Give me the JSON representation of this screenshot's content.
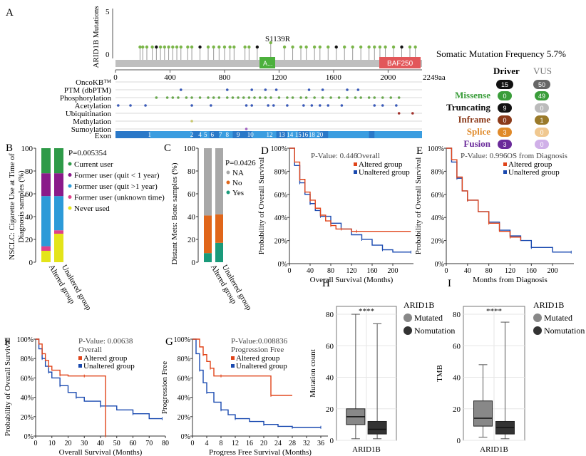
{
  "panelA": {
    "letter": "A",
    "yaxis_label": "ARID1B Mutations",
    "y_ticks": [
      "5",
      "0"
    ],
    "hotspot_label": "S1139R",
    "domain_small": "A...",
    "domain_large": "BAF250",
    "axis_ticks": [
      "0",
      "400",
      "800",
      "1200",
      "1600",
      "2000"
    ],
    "axis_end": "2249aa",
    "tracks": [
      "OncoKB™",
      "PTM (dbPTM)",
      "Phosphorylation",
      "Acetylation",
      "Ubiquitination",
      "Methylation",
      "Sumoylation",
      "Exon"
    ],
    "exon_labels": [
      "1",
      "2",
      "4",
      "5",
      "6",
      "7",
      "8",
      "9",
      "10",
      "12",
      "13",
      "14",
      "15",
      "16",
      "18",
      "20"
    ],
    "somatic_title": "Somatic Mutation Frequency 5.7%",
    "driver_header": "Driver",
    "vus_header": "VUS",
    "mutation_table": [
      {
        "label": "Missense",
        "color": "#3a9d3a",
        "driver": "0",
        "vus": "49",
        "driver_bg": "#3a9d3a",
        "vus_bg": "#3a9d3a"
      },
      {
        "label": "Truncating",
        "color": "#111111",
        "driver": "9",
        "vus": "0",
        "driver_bg": "#111111",
        "vus_bg": "#bbbbbb"
      },
      {
        "label": "Inframe",
        "color": "#8b3a1a",
        "driver": "0",
        "vus": "1",
        "driver_bg": "#8b3a1a",
        "vus_bg": "#9a7a2a"
      },
      {
        "label": "Splice",
        "color": "#e08a2a",
        "driver": "3",
        "vus": "0",
        "driver_bg": "#e08a2a",
        "vus_bg": "#f0c890"
      },
      {
        "label": "Fusion",
        "color": "#6a2a9a",
        "driver": "3",
        "vus": "0",
        "driver_bg": "#6a2a9a",
        "vus_bg": "#d0b0e8"
      }
    ],
    "totals": {
      "driver": "15",
      "vus": "50",
      "driver_bg": "#111111",
      "vus_bg": "#666666"
    }
  },
  "panelB": {
    "letter": "B",
    "ylabel_line1": "NSCLC: Cigarette Use at Time of",
    "ylabel_line2": "Diagnosis samples (%)",
    "pvalue": "P=0.005354",
    "y_ticks": [
      "100",
      "80",
      "60",
      "40",
      "20",
      "0"
    ],
    "categories": [
      "Altered group",
      "Unaltered group"
    ],
    "legend": [
      {
        "label": "Current user",
        "color": "#2e9a48"
      },
      {
        "label": "Former user (quit < 1 year)",
        "color": "#8a1a8a"
      },
      {
        "label": "Former user (quit >1 year)",
        "color": "#2c9ad8"
      },
      {
        "label": "Former user (unknown time)",
        "color": "#e0408a"
      },
      {
        "label": "Never used",
        "color": "#e4e41a"
      }
    ]
  },
  "panelC": {
    "letter": "C",
    "ylabel": "Distant Mets: Bone samples (%)",
    "pvalue": "P=0.0426",
    "y_ticks": [
      "100",
      "80",
      "60",
      "40",
      "20",
      "0"
    ],
    "categories": [
      "Altered group",
      "Unaltered group"
    ],
    "legend": [
      {
        "label": "NA",
        "color": "#a8a8a8"
      },
      {
        "label": "No",
        "color": "#e0661a"
      },
      {
        "label": "Yes",
        "color": "#1a9a7a"
      }
    ]
  },
  "panelD": {
    "letter": "D",
    "ylabel": "Probability of Overall Survival",
    "xlabel": "Overall Survival (Months)",
    "pvalue": "P-Value: 0.446",
    "subtitle": "Overall",
    "legend": [
      "Altered group",
      "Unaltered group"
    ],
    "y_ticks": [
      "100%",
      "80%",
      "60%",
      "40%",
      "20%",
      "0%"
    ],
    "x_ticks": [
      "0",
      "40",
      "80",
      "120",
      "160",
      "200"
    ]
  },
  "panelE": {
    "letter": "E",
    "ylabel": "Probability of Overall Survival",
    "xlabel": "Months from Diagnosis",
    "pvalue": "P-Value: 0.996",
    "subtitle": "OS from Diagnosis",
    "legend": [
      "Altered group",
      "Unaltered group"
    ],
    "y_ticks": [
      "100%",
      "80%",
      "60%",
      "40%",
      "20%",
      "0%"
    ],
    "x_ticks": [
      "0",
      "40",
      "80",
      "120",
      "160",
      "200"
    ]
  },
  "panelF": {
    "letter": "F",
    "ylabel": "Probability of Overall Survival",
    "xlabel": "Overall Survival (Months)",
    "pvalue": "P-Value: 0.00638",
    "subtitle": "Overall",
    "legend": [
      "Altered group",
      "Unaltered group"
    ],
    "y_ticks": [
      "100%",
      "80%",
      "60%",
      "40%",
      "20%",
      "0%"
    ],
    "x_ticks": [
      "0",
      "10",
      "20",
      "30",
      "40",
      "50",
      "60",
      "70",
      "80"
    ]
  },
  "panelG": {
    "letter": "G",
    "ylabel": "Progression Free",
    "xlabel": "Progress Free Survival (Months)",
    "pvalue": "P-Value:0.008836",
    "subtitle": "Progression Free",
    "legend": [
      "Altered group",
      "Unaltered group"
    ],
    "y_ticks": [
      "100%",
      "80%",
      "60%",
      "40%",
      "20%",
      "0%"
    ],
    "x_ticks": [
      "0",
      "4",
      "8",
      "12",
      "16",
      "20",
      "24",
      "28",
      "32",
      "36"
    ]
  },
  "panelH": {
    "letter": "H",
    "ylabel": "Mutation count",
    "xlabel": "ARID1B",
    "signif": "****",
    "legend_title": "ARID1B",
    "legend": [
      "Mutated",
      "Nomutation"
    ],
    "y_ticks": [
      "80",
      "60",
      "40",
      "20",
      "0"
    ]
  },
  "panelI": {
    "letter": "I",
    "ylabel": "TMB",
    "xlabel": "ARID1B",
    "signif": "****",
    "legend_title": "ARID1B",
    "legend": [
      "Mutated",
      "Nomutation"
    ],
    "y_ticks": [
      "80",
      "60",
      "40",
      "20",
      "0"
    ]
  },
  "colors": {
    "altered": "#e0441a",
    "unaltered": "#1a4ab0",
    "mutated": "#888888",
    "nomutation": "#333333"
  },
  "chart_data": [
    {
      "id": "B",
      "type": "bar",
      "title": "NSCLC: Cigarette Use at Time of Diagnosis",
      "categories": [
        "Altered group",
        "Unaltered group"
      ],
      "ylim": [
        0,
        100
      ],
      "series": [
        {
          "name": "Never used",
          "values": [
            10,
            25
          ]
        },
        {
          "name": "Former user (unknown time)",
          "values": [
            4,
            3
          ]
        },
        {
          "name": "Former user (quit >1 year)",
          "values": [
            44,
            30
          ]
        },
        {
          "name": "Former user (quit < 1 year)",
          "values": [
            20,
            20
          ]
        },
        {
          "name": "Current user",
          "values": [
            22,
            22
          ]
        }
      ]
    },
    {
      "id": "C",
      "type": "bar",
      "title": "Distant Mets: Bone",
      "categories": [
        "Altered group",
        "Unaltered group"
      ],
      "ylim": [
        0,
        100
      ],
      "series": [
        {
          "name": "Yes",
          "values": [
            8,
            17
          ]
        },
        {
          "name": "No",
          "values": [
            33,
            25
          ]
        },
        {
          "name": "NA",
          "values": [
            59,
            58
          ]
        }
      ]
    },
    {
      "id": "D",
      "type": "line",
      "xlim": [
        0,
        240
      ],
      "ylim": [
        0,
        100
      ],
      "series": [
        {
          "name": "Altered group",
          "x": [
            0,
            10,
            20,
            30,
            40,
            50,
            60,
            70,
            80,
            90,
            100,
            120,
            130,
            235
          ],
          "y": [
            100,
            88,
            73,
            62,
            55,
            48,
            42,
            37,
            33,
            30,
            30,
            28,
            28,
            28
          ]
        },
        {
          "name": "Unaltered group",
          "x": [
            0,
            10,
            20,
            30,
            40,
            50,
            60,
            80,
            100,
            120,
            140,
            160,
            180,
            200,
            235
          ],
          "y": [
            100,
            85,
            70,
            60,
            52,
            46,
            41,
            35,
            30,
            25,
            21,
            16,
            12,
            10,
            10
          ]
        }
      ]
    },
    {
      "id": "E",
      "type": "line",
      "xlim": [
        0,
        240
      ],
      "ylim": [
        0,
        100
      ],
      "series": [
        {
          "name": "Altered group",
          "x": [
            0,
            10,
            20,
            30,
            40,
            60,
            80,
            100,
            120,
            140
          ],
          "y": [
            100,
            90,
            75,
            63,
            55,
            45,
            35,
            28,
            23,
            20
          ]
        },
        {
          "name": "Unaltered group",
          "x": [
            0,
            10,
            20,
            30,
            40,
            60,
            80,
            100,
            120,
            140,
            160,
            200,
            235
          ],
          "y": [
            100,
            88,
            74,
            63,
            55,
            45,
            36,
            29,
            24,
            20,
            14,
            10,
            10
          ]
        }
      ]
    },
    {
      "id": "F",
      "type": "line",
      "xlim": [
        0,
        80
      ],
      "ylim": [
        0,
        100
      ],
      "series": [
        {
          "name": "Altered group",
          "x": [
            0,
            2,
            4,
            6,
            8,
            10,
            15,
            20,
            30,
            43,
            43.1
          ],
          "y": [
            100,
            95,
            85,
            78,
            72,
            68,
            63,
            62,
            62,
            62,
            0
          ]
        },
        {
          "name": "Unaltered group",
          "x": [
            0,
            2,
            4,
            6,
            8,
            10,
            15,
            20,
            25,
            30,
            40,
            50,
            60,
            70,
            78
          ],
          "y": [
            100,
            90,
            80,
            72,
            66,
            60,
            52,
            45,
            40,
            36,
            31,
            27,
            23,
            18,
            18
          ]
        }
      ]
    },
    {
      "id": "G",
      "type": "line",
      "xlim": [
        0,
        38
      ],
      "ylim": [
        0,
        100
      ],
      "series": [
        {
          "name": "Altered group",
          "x": [
            0,
            2,
            3,
            4,
            5,
            6,
            8,
            21,
            22,
            28
          ],
          "y": [
            100,
            92,
            84,
            77,
            70,
            62,
            62,
            62,
            42,
            42
          ]
        },
        {
          "name": "Unaltered group",
          "x": [
            0,
            1,
            2,
            3,
            4,
            6,
            8,
            10,
            12,
            16,
            20,
            24,
            28,
            32,
            36
          ],
          "y": [
            100,
            85,
            68,
            55,
            45,
            35,
            27,
            22,
            18,
            15,
            12,
            10,
            9,
            9,
            9
          ]
        }
      ]
    },
    {
      "id": "H",
      "type": "box",
      "title": "Mutation count",
      "ylim": [
        0,
        85
      ],
      "boxes": [
        {
          "name": "Mutated",
          "min": 1,
          "q1": 10,
          "median": 15,
          "q3": 20,
          "max": 80
        },
        {
          "name": "Nomutation",
          "min": 1,
          "q1": 4,
          "median": 7,
          "q3": 12,
          "max": 74
        }
      ]
    },
    {
      "id": "I",
      "type": "box",
      "title": "TMB",
      "ylim": [
        0,
        85
      ],
      "boxes": [
        {
          "name": "Mutated",
          "min": 2,
          "q1": 9,
          "median": 14,
          "q3": 25,
          "max": 48
        },
        {
          "name": "Nomutation",
          "min": 1,
          "q1": 4,
          "median": 8,
          "q3": 12,
          "max": 75
        }
      ]
    }
  ]
}
